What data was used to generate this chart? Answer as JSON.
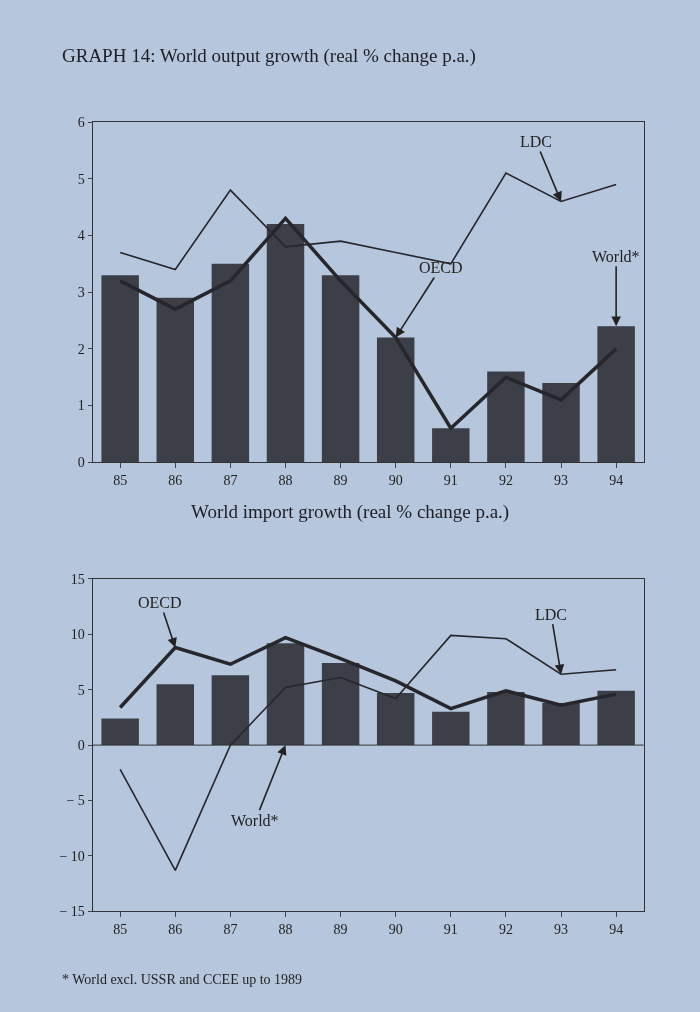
{
  "chart_data": [
    {
      "type": "bar",
      "title": "GRAPH 14: World output growth (real % change p.a.)",
      "categories": [
        "85",
        "86",
        "87",
        "88",
        "89",
        "90",
        "91",
        "92",
        "93",
        "94"
      ],
      "series": [
        {
          "color": "#3c3e48",
          "values": [
            3.3,
            2.9,
            3.5,
            4.2,
            3.3,
            2.2,
            0.6,
            1.6,
            1.4,
            2.4
          ]
        },
        {
          "type": "line",
          "color": "#26262c",
          "values": [
            3.2,
            2.7,
            3.2,
            4.3,
            3.2,
            2.2,
            0.6,
            1.5,
            1.1,
            2.0
          ]
        },
        {
          "type": "line",
          "color": "#26262c",
          "values": [
            3.7,
            3.4,
            4.8,
            3.8,
            3.9,
            3.7,
            3.5,
            5.1,
            4.6,
            4.9
          ]
        }
      ],
      "ylim": [
        0,
        6
      ],
      "yticks": [
        0,
        1,
        2,
        3,
        4,
        5,
        6
      ],
      "grid": false,
      "annotations": [
        {
          "text": "LDC",
          "x": "93",
          "y": 4.6
        },
        {
          "text": "OECD",
          "x": "90",
          "y": 2.2
        },
        {
          "text": "World*",
          "x": "94",
          "y": 2.4
        }
      ]
    },
    {
      "type": "bar",
      "title": "World import growth (real % change p.a.)",
      "categories": [
        "85",
        "86",
        "87",
        "88",
        "89",
        "90",
        "91",
        "92",
        "93",
        "94"
      ],
      "series": [
        {
          "color": "#3c3e48",
          "values": [
            2.4,
            5.5,
            6.3,
            9.2,
            7.4,
            4.7,
            3.0,
            4.8,
            3.8,
            4.9
          ]
        },
        {
          "type": "line",
          "color": "#26262c",
          "values": [
            3.4,
            8.8,
            7.3,
            9.7,
            7.8,
            5.8,
            3.3,
            4.9,
            3.6,
            4.6
          ]
        },
        {
          "type": "line",
          "color": "#26262c",
          "values": [
            -2.2,
            -11.3,
            0,
            5.2,
            6.1,
            4.2,
            9.9,
            9.6,
            6.4,
            6.8
          ]
        }
      ],
      "ylim": [
        -15,
        15
      ],
      "yticks": [
        15,
        10,
        5,
        0,
        {
          "value": -5,
          "label": "− 5"
        },
        {
          "value": -10,
          "label": "− 10"
        },
        {
          "value": -15,
          "label": "− 15"
        }
      ],
      "ref_lines": [
        {
          "axis": "y",
          "value": 0
        }
      ],
      "grid": false,
      "annotations": [
        {
          "text": "OECD",
          "x": "86",
          "y": 8.8
        },
        {
          "text": "LDC",
          "x": "93",
          "y": 6.4
        },
        {
          "text": "World*",
          "x": "88",
          "y": 0
        },
        "* World excl. USSR and CCEE up to 1989"
      ]
    }
  ]
}
